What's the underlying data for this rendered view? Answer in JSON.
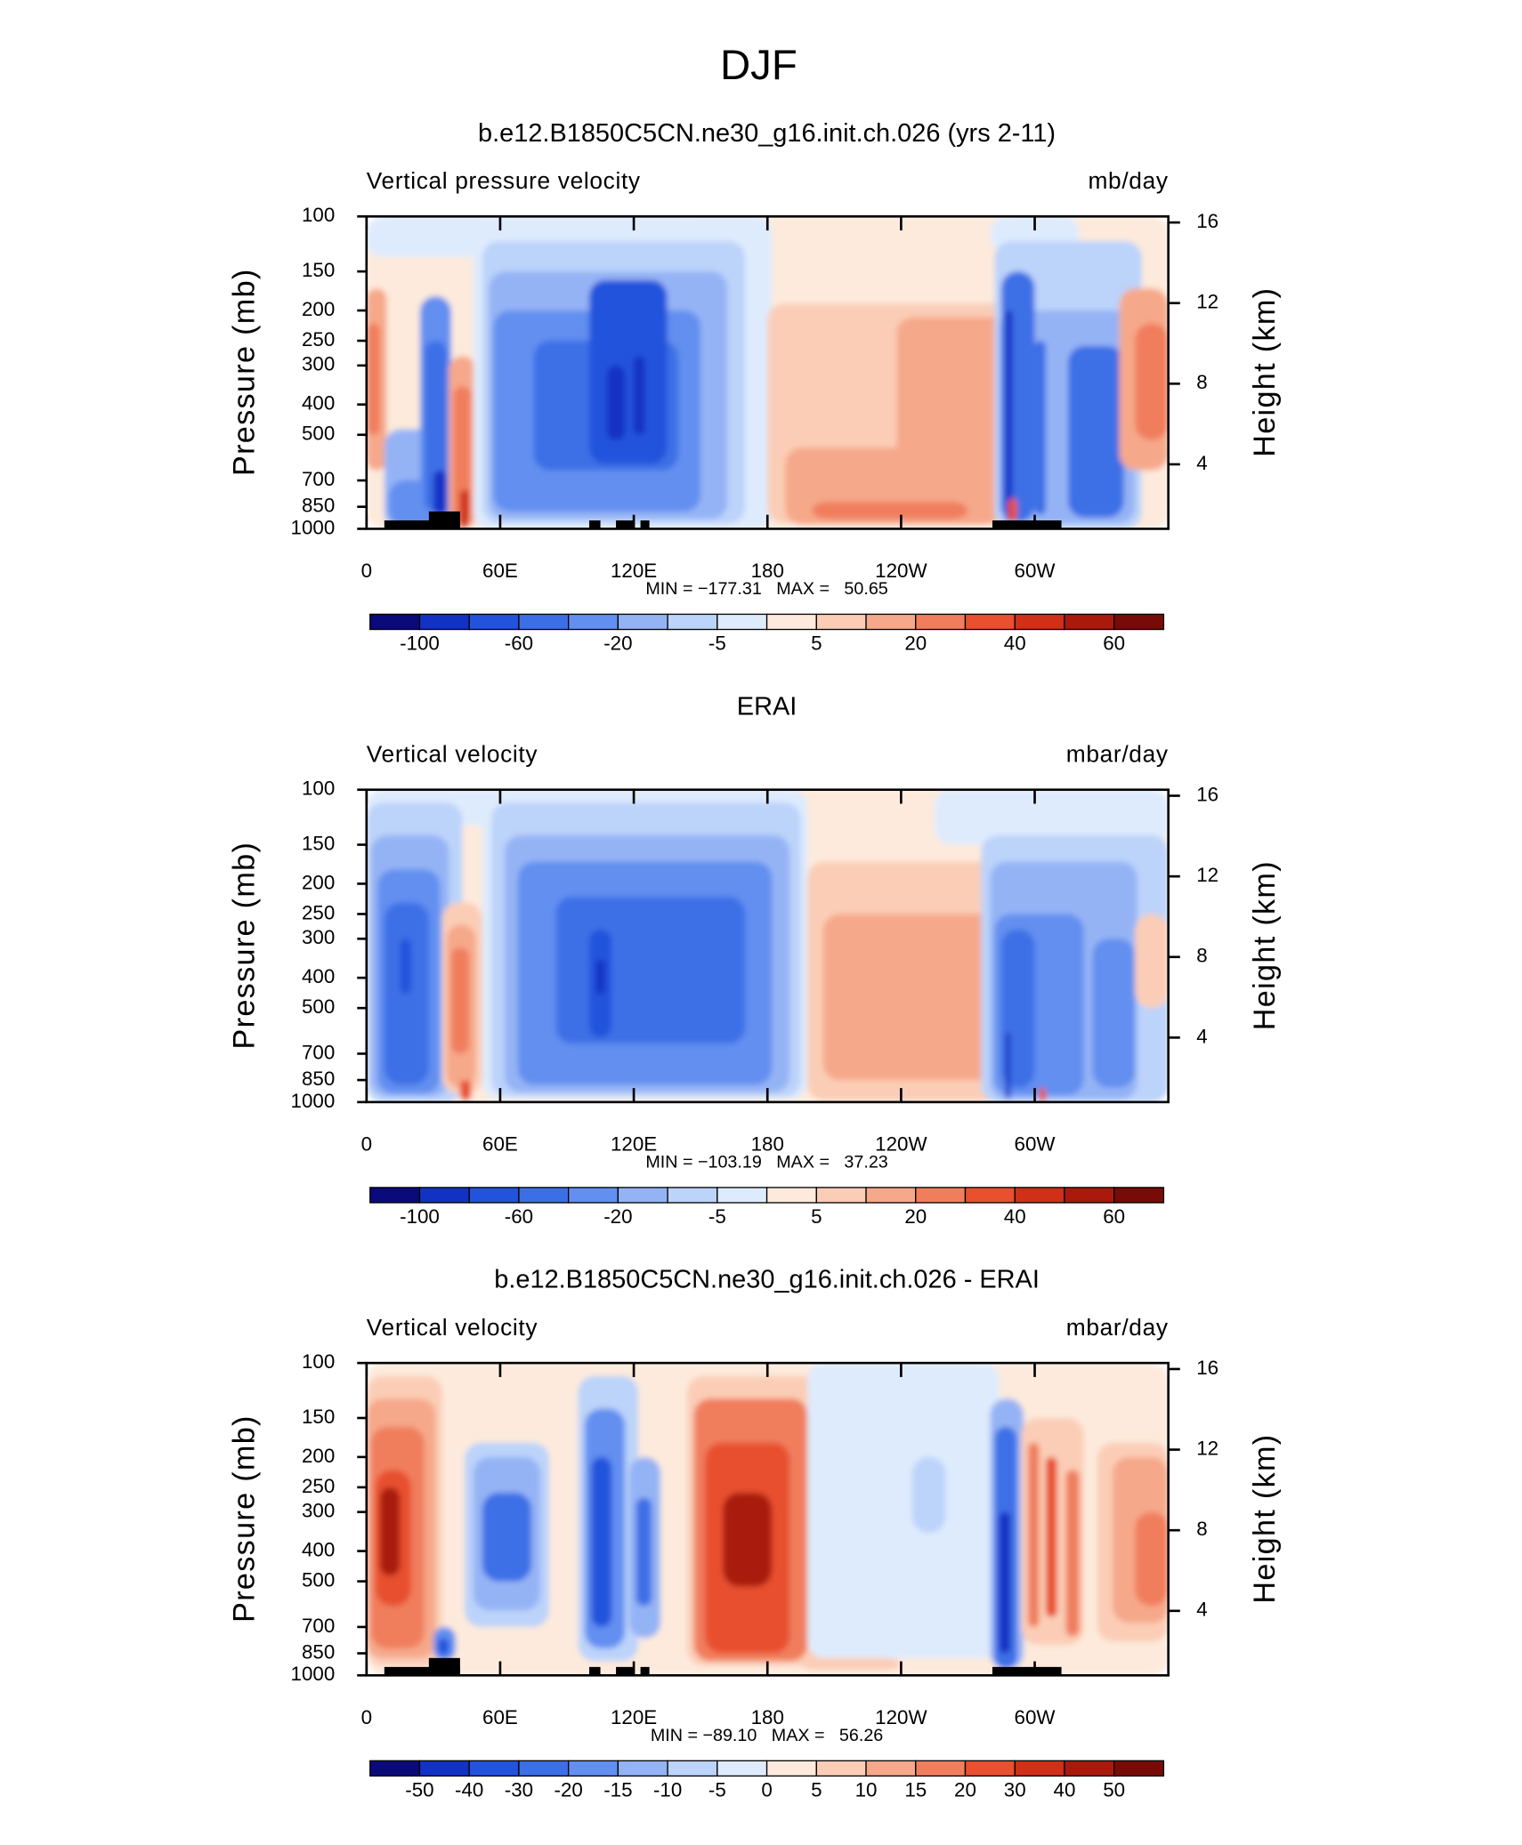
{
  "title": "DJF",
  "chart_data": [
    {
      "type": "contour",
      "title": "b.e12.B1850C5CN.ne30_g16.init.ch.026 (yrs 2-11)",
      "left_string": "Vertical pressure velocity",
      "right_string": "mb/day",
      "ylabel": "Pressure (mb)",
      "y2label": "Height (km)",
      "xlim": [
        0,
        360
      ],
      "xticks": [
        0,
        {
          "value": 60,
          "label": "60E"
        },
        {
          "value": 120,
          "label": "120E"
        },
        180,
        {
          "value": 240,
          "label": "120W"
        },
        {
          "value": 300,
          "label": "60W"
        }
      ],
      "ylim": [
        1000,
        100
      ],
      "yscale": "log",
      "yticks": [
        100,
        150,
        200,
        250,
        300,
        400,
        500,
        700,
        850,
        1000
      ],
      "y2lim": [
        0.8,
        16.3
      ],
      "y2ticks": [
        4,
        8,
        12,
        16
      ],
      "stats": "MIN = −177.31   MAX =   50.65",
      "topography": true,
      "colorbar": {
        "colors": [
          "#0b0a7a",
          "#1232c4",
          "#2352dc",
          "#3c6fe6",
          "#628ff0",
          "#94b3f5",
          "#bcd3fa",
          "#deebfd",
          "#fdeadc",
          "#fbcdb6",
          "#f6a88a",
          "#f07e5d",
          "#e8502f",
          "#d02f18",
          "#a91a0c",
          "#780b07"
        ],
        "ticks": [
          -100,
          -60,
          -20,
          -5,
          5,
          20,
          40,
          60
        ]
      }
    },
    {
      "type": "contour",
      "title": "ERAI",
      "left_string": "Vertical velocity",
      "right_string": "mbar/day",
      "ylabel": "Pressure (mb)",
      "y2label": "Height (km)",
      "xlim": [
        0,
        360
      ],
      "xticks": [
        0,
        {
          "value": 60,
          "label": "60E"
        },
        {
          "value": 120,
          "label": "120E"
        },
        180,
        {
          "value": 240,
          "label": "120W"
        },
        {
          "value": 300,
          "label": "60W"
        }
      ],
      "ylim": [
        1000,
        100
      ],
      "yscale": "log",
      "yticks": [
        100,
        150,
        200,
        250,
        300,
        400,
        500,
        700,
        850,
        1000
      ],
      "y2lim": [
        0.8,
        16.3
      ],
      "y2ticks": [
        4,
        8,
        12,
        16
      ],
      "stats": "MIN = −103.19   MAX =   37.23",
      "topography": false,
      "colorbar": {
        "colors": [
          "#0b0a7a",
          "#1232c4",
          "#2352dc",
          "#3c6fe6",
          "#628ff0",
          "#94b3f5",
          "#bcd3fa",
          "#deebfd",
          "#fdeadc",
          "#fbcdb6",
          "#f6a88a",
          "#f07e5d",
          "#e8502f",
          "#d02f18",
          "#a91a0c",
          "#780b07"
        ],
        "ticks": [
          -100,
          -60,
          -20,
          -5,
          5,
          20,
          40,
          60
        ]
      }
    },
    {
      "type": "contour",
      "title": "b.e12.B1850C5CN.ne30_g16.init.ch.026 - ERAI",
      "left_string": "Vertical velocity",
      "right_string": "mbar/day",
      "ylabel": "Pressure (mb)",
      "y2label": "Height (km)",
      "xlim": [
        0,
        360
      ],
      "xticks": [
        0,
        {
          "value": 60,
          "label": "60E"
        },
        {
          "value": 120,
          "label": "120E"
        },
        180,
        {
          "value": 240,
          "label": "120W"
        },
        {
          "value": 300,
          "label": "60W"
        }
      ],
      "ylim": [
        1000,
        100
      ],
      "yscale": "log",
      "yticks": [
        100,
        150,
        200,
        250,
        300,
        400,
        500,
        700,
        850,
        1000
      ],
      "y2lim": [
        0.8,
        16.3
      ],
      "y2ticks": [
        4,
        8,
        12,
        16
      ],
      "stats": "MIN = −89.10   MAX =   56.26",
      "topography": true,
      "colorbar": {
        "colors": [
          "#0b0a7a",
          "#1232c4",
          "#2352dc",
          "#3c6fe6",
          "#628ff0",
          "#94b3f5",
          "#bcd3fa",
          "#deebfd",
          "#fdeadc",
          "#fbcdb6",
          "#f6a88a",
          "#f07e5d",
          "#e8502f",
          "#d02f18",
          "#a91a0c",
          "#780b07"
        ],
        "ticks": [
          -50,
          -40,
          -30,
          -20,
          -15,
          -10,
          -5,
          0,
          5,
          10,
          15,
          20,
          30,
          40,
          50
        ]
      }
    }
  ]
}
